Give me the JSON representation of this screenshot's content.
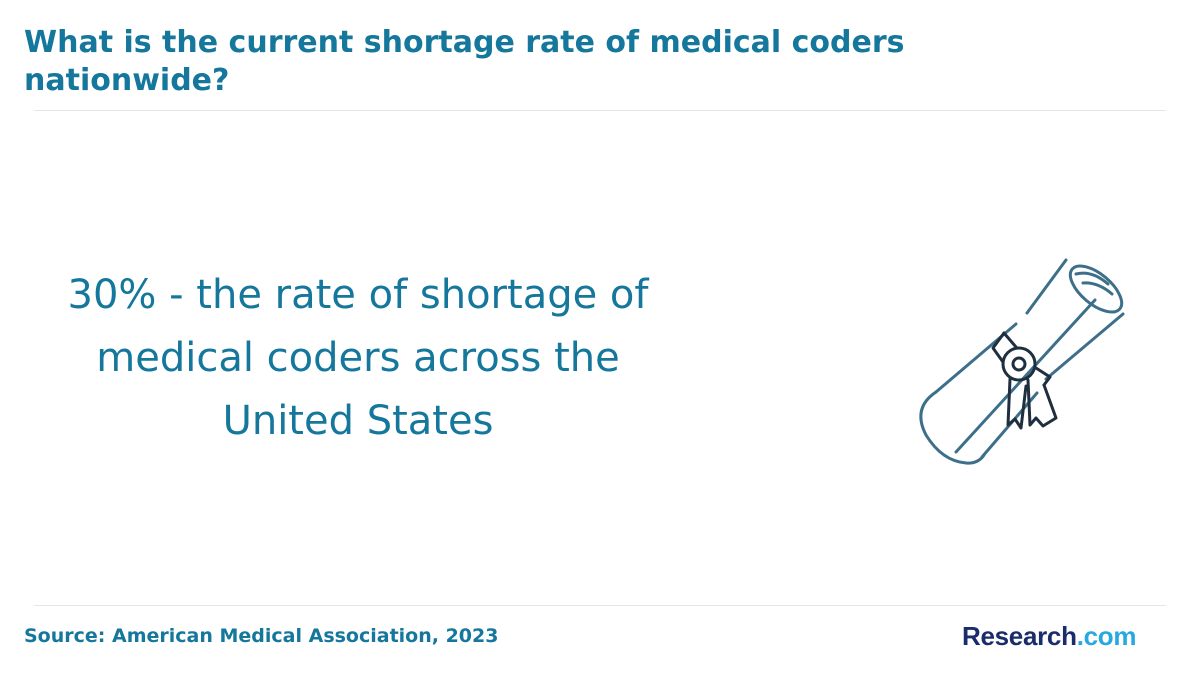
{
  "header": {
    "title": "What is the current shortage rate of medical coders nationwide?"
  },
  "main": {
    "statement": "30% - the rate of shortage of medical coders across the United States",
    "illustration_icon": "diploma-scroll-icon"
  },
  "footer": {
    "source": "Source: American Medical Association, 2023",
    "logo_main": "Research",
    "logo_tld": ".com"
  },
  "colors": {
    "title": "#14779b",
    "icon_stroke": "#3d6f8a",
    "icon_dark": "#1f2f3f",
    "logo_main": "#1b2c6b",
    "logo_tld": "#27a8e0"
  }
}
